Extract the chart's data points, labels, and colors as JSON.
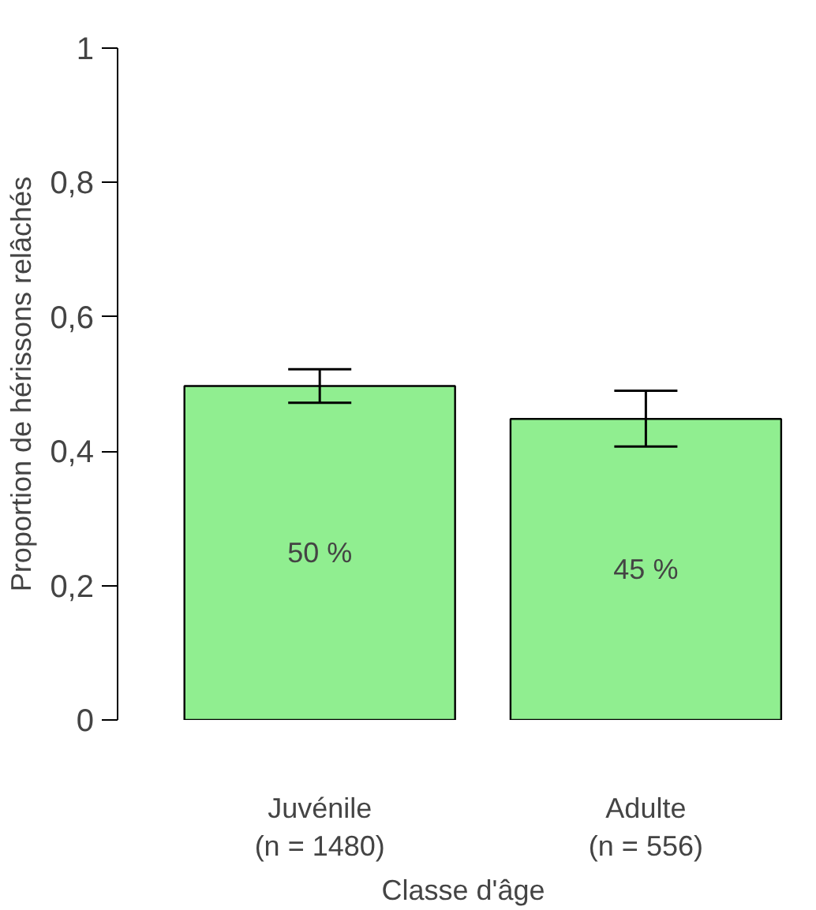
{
  "chart_data": {
    "type": "bar",
    "categories": [
      "Juvénile\n(n = 1480)",
      "Adulte\n(n = 556)"
    ],
    "values": [
      0.497,
      0.448
    ],
    "errors": [
      [
        0.472,
        0.522
      ],
      [
        0.407,
        0.49
      ]
    ],
    "value_labels": [
      "50 %",
      "45 %"
    ],
    "color": "#90ee90",
    "xlabel": "Classe d'âge",
    "ylabel": "Proportion de hérissons relâchés",
    "ylim": [
      0,
      1
    ],
    "yticks": [
      {
        "value": 0,
        "label": "0"
      },
      {
        "value": 0.2,
        "label": "0,2"
      },
      {
        "value": 0.4,
        "label": "0,4"
      },
      {
        "value": 0.6,
        "label": "0,6"
      },
      {
        "value": 0.8,
        "label": "0,8"
      },
      {
        "value": 1,
        "label": "1"
      }
    ],
    "grid": false
  }
}
